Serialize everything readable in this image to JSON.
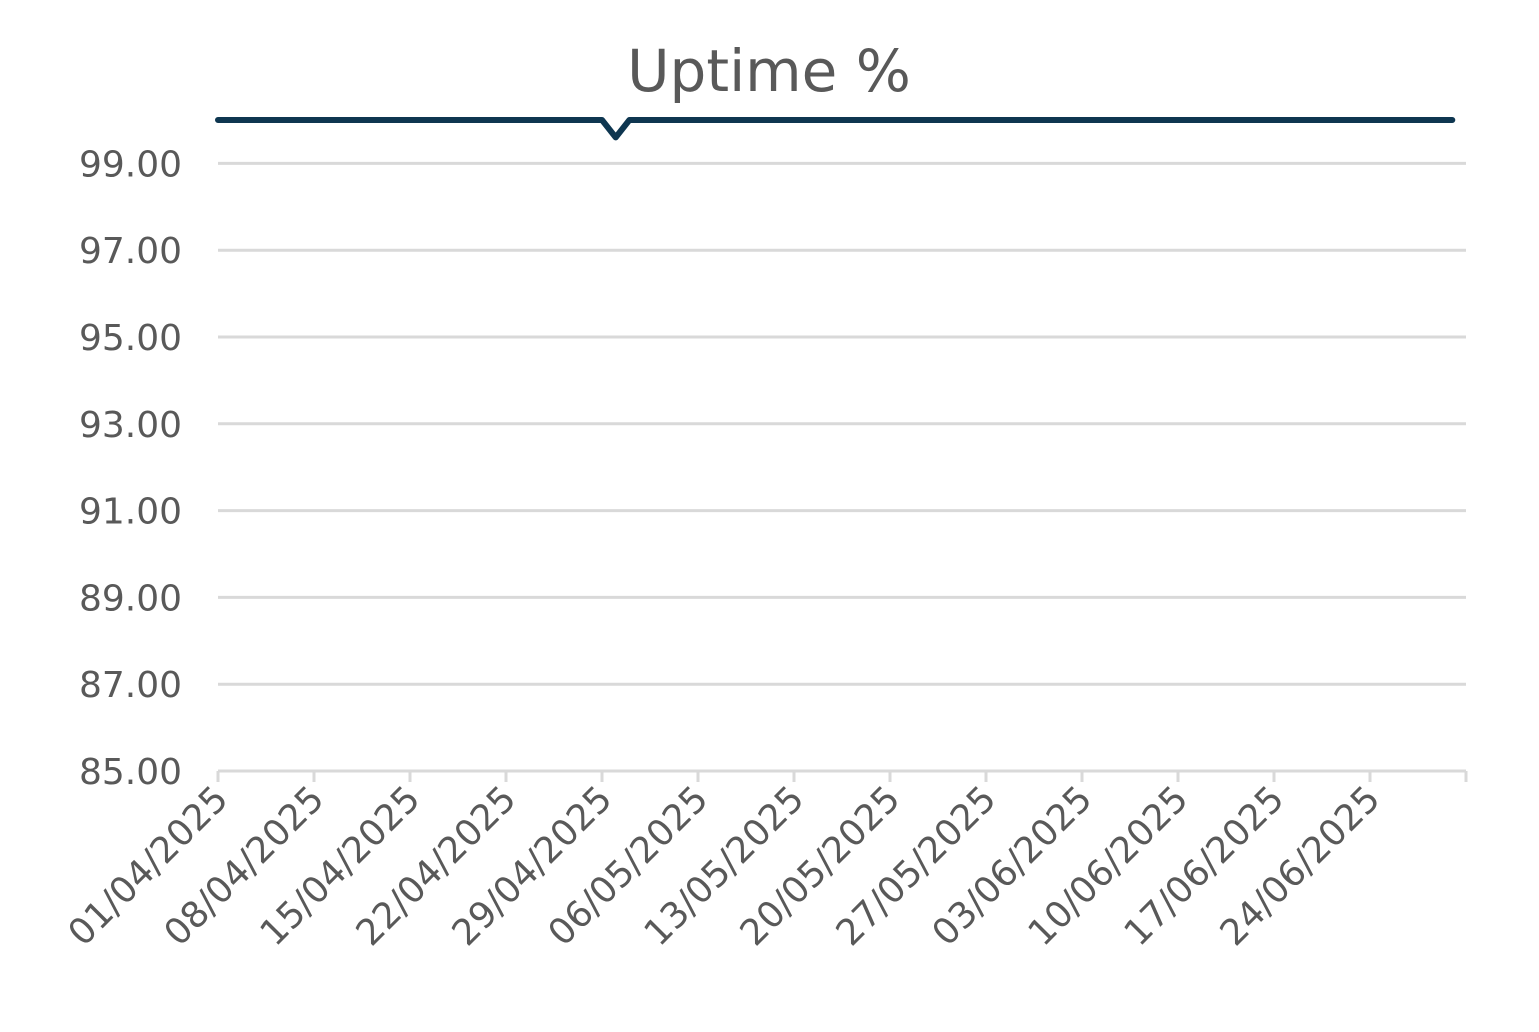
{
  "chart_data": {
    "type": "line",
    "title": "Uptime %",
    "xlabel": "",
    "ylabel": "",
    "ylim": [
      85,
      100
    ],
    "yticks": [
      "85.00",
      "87.00",
      "89.00",
      "91.00",
      "93.00",
      "95.00",
      "97.00",
      "99.00"
    ],
    "x_start": "01/04/2025",
    "x_end": "30/06/2025",
    "xticks": [
      "01/04/2025",
      "08/04/2025",
      "15/04/2025",
      "22/04/2025",
      "29/04/2025",
      "06/05/2025",
      "13/05/2025",
      "20/05/2025",
      "27/05/2025",
      "03/06/2025",
      "10/06/2025",
      "17/06/2025",
      "24/06/2025"
    ],
    "grid": true,
    "legend": "none",
    "series": [
      {
        "color": "#0e3650",
        "points": [
          {
            "x": "01/04/2025",
            "y": 100.0
          },
          {
            "x": "29/04/2025",
            "y": 100.0
          },
          {
            "x": "30/04/2025",
            "y": 99.6
          },
          {
            "x": "01/05/2025",
            "y": 100.0
          },
          {
            "x": "30/06/2025",
            "y": 100.0
          }
        ]
      }
    ]
  }
}
